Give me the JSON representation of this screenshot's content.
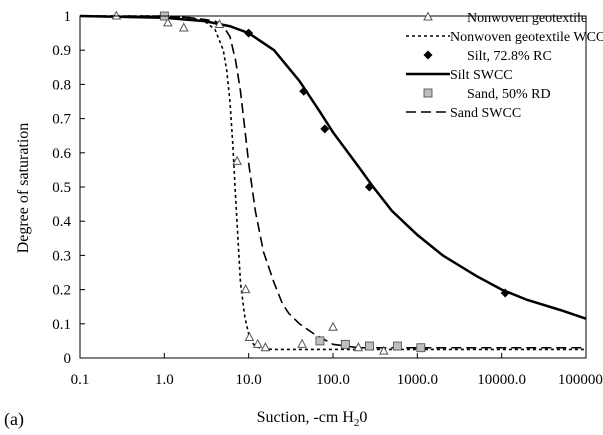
{
  "chart_data": {
    "type": "scatter",
    "panel_label": "(a)",
    "xlabel": "Suction, -cm H",
    "xlabel_sub": "2",
    "xlabel_tail": "0",
    "ylabel": "Degree of saturation",
    "x_scale": "log",
    "xlim": [
      0.1,
      100000
    ],
    "ylim": [
      0,
      1
    ],
    "x_ticks": [
      0.1,
      1,
      10,
      100,
      1000,
      10000,
      100000
    ],
    "x_tick_labels": [
      "0.1",
      "1.0",
      "10.0",
      "100.0",
      "1000.0",
      "10000.0",
      "100000.0"
    ],
    "y_ticks": [
      0,
      0.1,
      0.2,
      0.3,
      0.4,
      0.5,
      0.6,
      0.7,
      0.8,
      0.9,
      1
    ],
    "y_tick_labels": [
      "0",
      "0.1",
      "0.2",
      "0.3",
      "0.4",
      "0.5",
      "0.6",
      "0.7",
      "0.8",
      "0.9",
      "1"
    ],
    "grid": false,
    "legend_position": "top-right",
    "series": [
      {
        "name": "Nonwoven geotextile",
        "kind": "points",
        "marker": "triangle",
        "x": [
          0.27,
          1.1,
          1.7,
          4.5,
          7.3,
          9.2,
          10.2,
          12.8,
          15.8,
          43,
          100,
          200,
          400
        ],
        "y": [
          1.0,
          0.98,
          0.965,
          0.975,
          0.575,
          0.2,
          0.06,
          0.04,
          0.03,
          0.04,
          0.09,
          0.03,
          0.02
        ]
      },
      {
        "name": "Nonwoven geotextile WCC",
        "kind": "line",
        "dash": "3,3",
        "x": [
          0.1,
          1,
          2,
          3,
          4,
          5,
          5.5,
          6,
          6.5,
          7,
          7.5,
          8,
          9,
          10,
          11,
          12,
          14,
          16,
          20,
          30,
          100000
        ],
        "y": [
          1.0,
          1.0,
          0.995,
          0.985,
          0.96,
          0.9,
          0.84,
          0.75,
          0.62,
          0.47,
          0.34,
          0.22,
          0.12,
          0.07,
          0.045,
          0.035,
          0.028,
          0.026,
          0.025,
          0.025,
          0.025
        ]
      },
      {
        "name": "Silt, 72.8% RC",
        "kind": "points",
        "marker": "diamond",
        "x": [
          10,
          45,
          80,
          270,
          11000
        ],
        "y": [
          0.95,
          0.78,
          0.67,
          0.5,
          0.19
        ]
      },
      {
        "name": "Silt SWCC",
        "kind": "line",
        "dash": "",
        "x": [
          0.1,
          1,
          3,
          6,
          10,
          20,
          40,
          70,
          100,
          200,
          300,
          500,
          1000,
          2000,
          5000,
          10000,
          20000,
          50000,
          100000
        ],
        "y": [
          1.0,
          0.995,
          0.985,
          0.97,
          0.95,
          0.9,
          0.81,
          0.72,
          0.66,
          0.56,
          0.5,
          0.43,
          0.36,
          0.3,
          0.24,
          0.2,
          0.17,
          0.14,
          0.115
        ]
      },
      {
        "name": "Sand, 50% RD",
        "kind": "points",
        "marker": "square",
        "x": [
          1.0,
          70,
          140,
          270,
          580,
          1100
        ],
        "y": [
          1.0,
          0.05,
          0.04,
          0.035,
          0.035,
          0.03
        ]
      },
      {
        "name": "Sand SWCC",
        "kind": "line",
        "dash": "10,5",
        "x": [
          0.1,
          1,
          2,
          3,
          4,
          5,
          6,
          7,
          8,
          9,
          10,
          12,
          15,
          20,
          25,
          30,
          40,
          60,
          100,
          200,
          1000,
          100000
        ],
        "y": [
          1.0,
          1.0,
          0.995,
          0.99,
          0.985,
          0.97,
          0.94,
          0.87,
          0.78,
          0.67,
          0.57,
          0.43,
          0.31,
          0.22,
          0.16,
          0.13,
          0.1,
          0.07,
          0.04,
          0.03,
          0.03,
          0.03
        ]
      }
    ]
  }
}
